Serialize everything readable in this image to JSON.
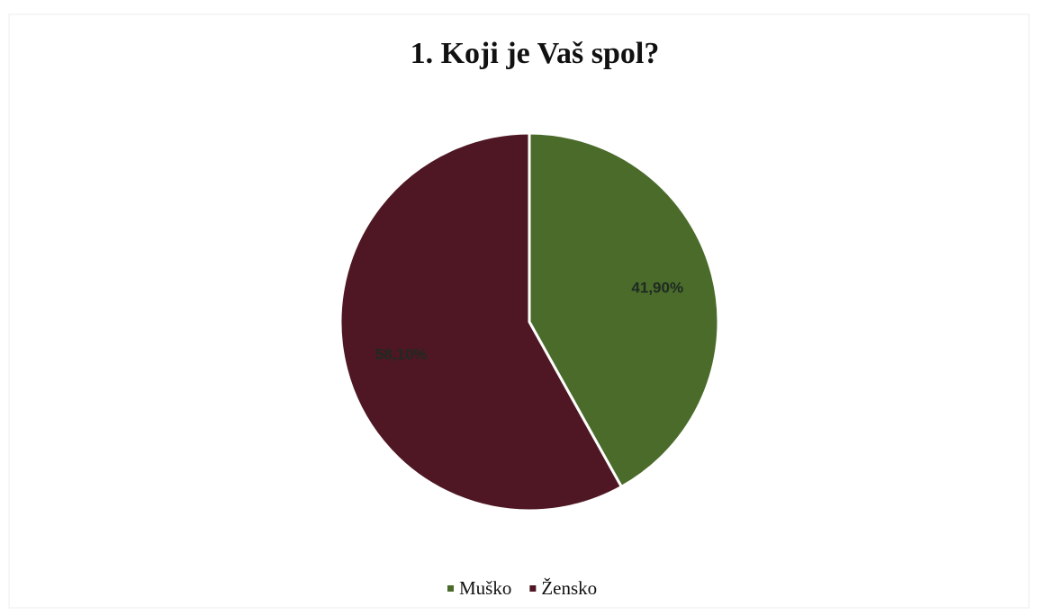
{
  "chart_data": {
    "type": "pie",
    "title": "1. Koji je Vaš spol?",
    "categories": [
      "Muško",
      "Žensko"
    ],
    "values": [
      41.9,
      58.1
    ],
    "value_labels": [
      "41,90%",
      "58,10%"
    ],
    "colors": [
      "#4a6b2a",
      "#4e1723"
    ],
    "legend": "bottom"
  }
}
